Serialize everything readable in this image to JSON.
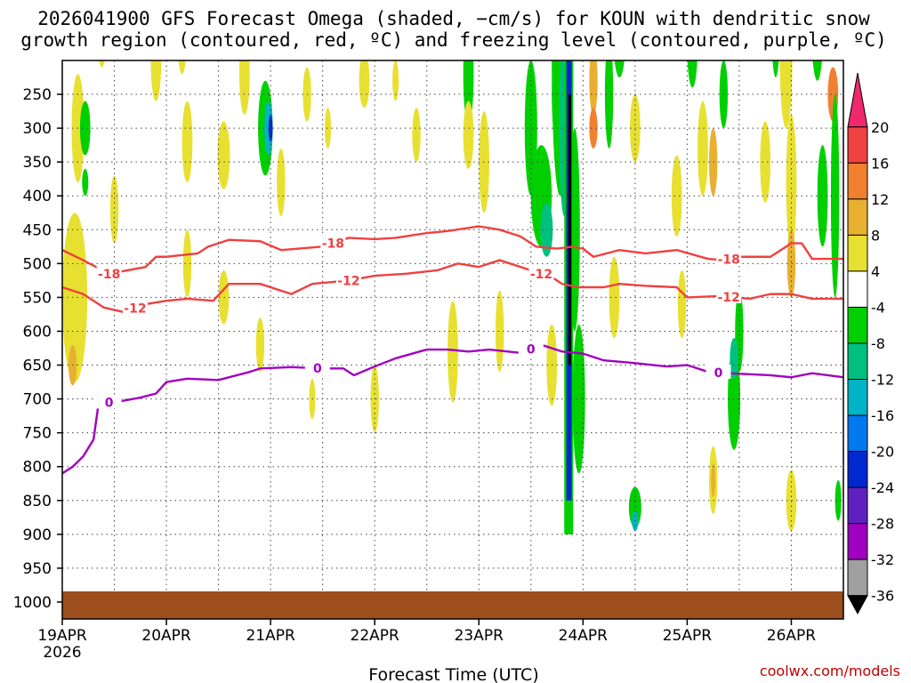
{
  "chart_data": {
    "type": "heatmap",
    "title_line1": "2026041900 GFS Forecast Omega (shaded, −cm/s) for KOUN with dendritic snow",
    "title_line2": "growth region (contoured, red, ºC) and freezing level (contoured, purple, ºC)",
    "xlabel": "Forecast Time (UTC)",
    "year_label": "2026",
    "credit": "coolwx.com/models",
    "x_ticks": [
      "19APR",
      "20APR",
      "21APR",
      "22APR",
      "23APR",
      "24APR",
      "25APR",
      "26APR"
    ],
    "x_range_days": [
      0,
      7.5
    ],
    "y_axis": "pressure (hPa), inverted",
    "y_ticks": [
      250,
      300,
      350,
      400,
      450,
      500,
      550,
      600,
      650,
      700,
      750,
      800,
      850,
      900,
      950,
      1000
    ],
    "y_range": [
      200,
      1025
    ],
    "grid": "dotted",
    "colorbar": {
      "labels": [
        20,
        16,
        12,
        8,
        4,
        -4,
        -8,
        -12,
        -16,
        -20,
        -24,
        -28,
        -32,
        -36
      ],
      "colors": [
        "#f0286e",
        "#f04040",
        "#f08030",
        "#e8b030",
        "#e8e030",
        "#ffffff",
        "#00d000",
        "#00c080",
        "#00b4c8",
        "#0078f0",
        "#0028d0",
        "#6020c0",
        "#a000c0",
        "#a0a0a0",
        "#000000"
      ]
    },
    "series": [
      {
        "label": "-18",
        "color": "#f04040",
        "x": [
          0,
          0.2,
          0.45,
          0.8,
          0.9,
          1.0,
          1.3,
          1.4,
          1.6,
          1.9,
          2.1,
          2.5,
          2.75,
          3.0,
          3.2,
          3.5,
          3.7,
          4.0,
          4.2,
          4.4,
          4.55,
          4.75,
          4.9,
          5.0,
          5.1,
          5.35,
          5.6,
          5.9,
          6.2,
          6.35,
          6.5,
          6.8,
          7.0,
          7.1,
          7.2,
          7.5
        ],
        "y": [
          480,
          495,
          515,
          505,
          490,
          490,
          485,
          475,
          465,
          467,
          480,
          475,
          462,
          464,
          462,
          455,
          452,
          445,
          450,
          460,
          475,
          478,
          475,
          478,
          490,
          480,
          485,
          480,
          493,
          495,
          490,
          490,
          470,
          470,
          493,
          493
        ]
      },
      {
        "label": "-12",
        "color": "#f04040",
        "x": [
          0,
          0.2,
          0.4,
          0.6,
          0.8,
          1.0,
          1.2,
          1.45,
          1.6,
          1.9,
          2.2,
          2.4,
          2.75,
          3.0,
          3.3,
          3.6,
          3.8,
          4.0,
          4.2,
          4.5,
          4.7,
          4.8,
          4.95,
          5.2,
          5.35,
          5.6,
          5.9,
          6.0,
          6.3,
          6.6,
          6.8,
          7.0,
          7.2,
          7.5
        ],
        "y": [
          535,
          545,
          565,
          572,
          560,
          555,
          552,
          555,
          530,
          530,
          545,
          530,
          525,
          518,
          515,
          510,
          500,
          505,
          495,
          510,
          520,
          530,
          535,
          535,
          530,
          533,
          535,
          550,
          548,
          552,
          545,
          545,
          552,
          552
        ]
      },
      {
        "label": "0",
        "color": "#a000c0",
        "x": [
          0,
          0.1,
          0.2,
          0.3,
          0.35,
          0.5,
          0.75,
          0.9,
          1.0,
          1.2,
          1.5,
          1.8,
          1.9,
          2.2,
          2.5,
          2.7,
          2.8,
          3.0,
          3.2,
          3.5,
          3.7,
          3.9,
          4.1,
          4.4,
          4.6,
          4.8,
          5.0,
          5.2,
          5.5,
          5.8,
          6.0,
          6.2,
          6.4,
          6.8,
          7.0,
          7.2,
          7.5
        ],
        "y": [
          810,
          800,
          785,
          760,
          705,
          705,
          698,
          692,
          675,
          670,
          672,
          660,
          655,
          653,
          655,
          655,
          665,
          652,
          640,
          627,
          627,
          630,
          627,
          632,
          620,
          630,
          633,
          643,
          647,
          652,
          650,
          660,
          662,
          665,
          668,
          662,
          668
        ]
      }
    ]
  }
}
